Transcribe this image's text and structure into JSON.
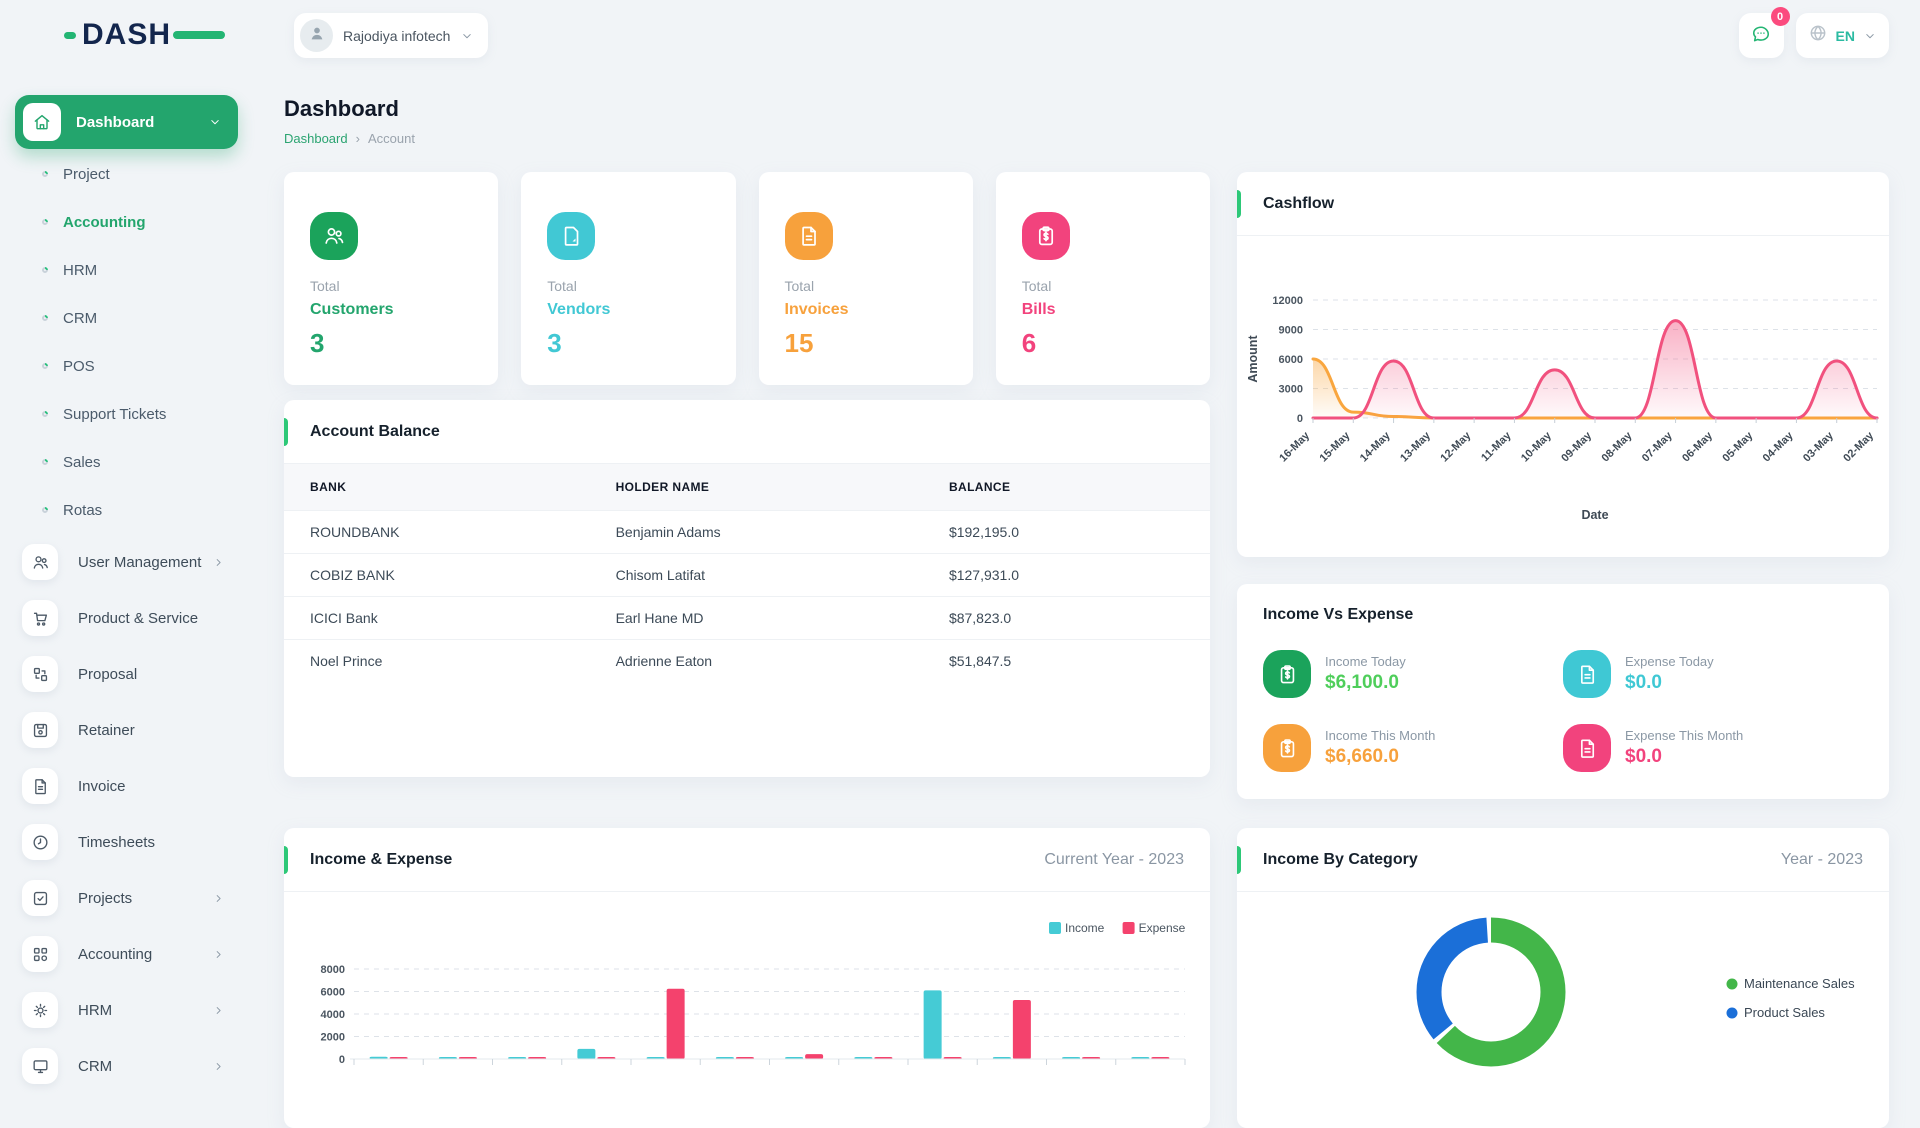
{
  "brand": {
    "name": "DASH"
  },
  "header": {
    "workspace": {
      "name": "Rajodiya infotech"
    },
    "messages_badge": "0",
    "language": "EN"
  },
  "page": {
    "title": "Dashboard",
    "breadcrumb": {
      "parent": "Dashboard",
      "separator": "›",
      "current": "Account"
    }
  },
  "sidebar": {
    "main_item": {
      "label": "Dashboard"
    },
    "sub_items": [
      {
        "label": "Project",
        "active": false
      },
      {
        "label": "Accounting",
        "active": true
      },
      {
        "label": "HRM",
        "active": false
      },
      {
        "label": "CRM",
        "active": false
      },
      {
        "label": "POS",
        "active": false
      },
      {
        "label": "Support Tickets",
        "active": false
      },
      {
        "label": "Sales",
        "active": false
      },
      {
        "label": "Rotas",
        "active": false
      }
    ],
    "menu_items": [
      {
        "label": "User Management",
        "icon": "users",
        "chevron": true
      },
      {
        "label": "Product & Service",
        "icon": "cart",
        "chevron": false
      },
      {
        "label": "Proposal",
        "icon": "proposal",
        "chevron": false
      },
      {
        "label": "Retainer",
        "icon": "floppy",
        "chevron": false
      },
      {
        "label": "Invoice",
        "icon": "file-text",
        "chevron": false
      },
      {
        "label": "Timesheets",
        "icon": "clock",
        "chevron": false
      },
      {
        "label": "Projects",
        "icon": "check-square",
        "chevron": true
      },
      {
        "label": "Accounting",
        "icon": "grid",
        "chevron": true
      },
      {
        "label": "HRM",
        "icon": "gear",
        "chevron": true
      },
      {
        "label": "CRM",
        "icon": "monitor",
        "chevron": true
      }
    ]
  },
  "stats": [
    {
      "prefix": "Total",
      "label": "Customers",
      "value": "3",
      "color": "#23a56d",
      "icon_bg": "#1ba35b",
      "icon": "users"
    },
    {
      "prefix": "Total",
      "label": "Vendors",
      "value": "3",
      "color": "#41c8d4",
      "icon_bg": "#41c8d4",
      "icon": "file-blank"
    },
    {
      "prefix": "Total",
      "label": "Invoices",
      "value": "15",
      "color": "#f7a13c",
      "icon_bg": "#f7a13c",
      "icon": "file-text"
    },
    {
      "prefix": "Total",
      "label": "Bills",
      "value": "6",
      "color": "#f2437d",
      "icon_bg": "#f2437d",
      "icon": "clipboard-dollar"
    }
  ],
  "account_balance": {
    "title": "Account Balance",
    "columns": [
      "BANK",
      "HOLDER NAME",
      "BALANCE"
    ],
    "rows": [
      {
        "bank": "ROUNDBANK",
        "holder": "Benjamin Adams",
        "balance": "$192,195.0"
      },
      {
        "bank": "COBIZ BANK",
        "holder": "Chisom Latifat",
        "balance": "$127,931.0"
      },
      {
        "bank": "ICICI Bank",
        "holder": "Earl Hane MD",
        "balance": "$87,823.0"
      },
      {
        "bank": "Noel Prince",
        "holder": "Adrienne Eaton",
        "balance": "$51,847.5"
      }
    ]
  },
  "income_vs_expense": {
    "title": "Income Vs Expense",
    "items": [
      {
        "label": "Income Today",
        "value": "$6,100.0",
        "color": "#4fce5b",
        "icon_bg": "#1ba35b",
        "icon": "clipboard-dollar"
      },
      {
        "label": "Expense Today",
        "value": "$0.0",
        "color": "#3fc8d4",
        "icon_bg": "#3fc8d4",
        "icon": "file-text"
      },
      {
        "label": "Income This Month",
        "value": "$6,660.0",
        "color": "#f7a13c",
        "icon_bg": "#f7a13c",
        "icon": "clipboard-dollar"
      },
      {
        "label": "Expense This Month",
        "value": "$0.0",
        "color": "#f2437d",
        "icon_bg": "#f2437d",
        "icon": "file-text"
      }
    ]
  },
  "panels": {
    "cashflow_title": "Cashflow",
    "income_expense_title": "Income & Expense",
    "income_expense_period": "Current Year - 2023",
    "category_title": "Income By Category",
    "category_period": "Year - 2023"
  },
  "chart_data": [
    {
      "type": "area",
      "title": "Cashflow",
      "xlabel": "Date",
      "ylabel": "Amount",
      "x": [
        "16-May",
        "15-May",
        "14-May",
        "13-May",
        "12-May",
        "11-May",
        "10-May",
        "09-May",
        "08-May",
        "07-May",
        "06-May",
        "05-May",
        "04-May",
        "03-May",
        "02-May"
      ],
      "ylim": [
        0,
        12000
      ],
      "yticks": [
        0,
        3000,
        6000,
        9000,
        12000
      ],
      "grid": true,
      "legend_position": "none",
      "series": [
        {
          "name": "series-orange",
          "color": "#f9a63e",
          "values": [
            6000,
            600,
            150,
            0,
            0,
            0,
            0,
            0,
            0,
            0,
            0,
            0,
            0,
            0,
            0
          ]
        },
        {
          "name": "series-pink",
          "color": "#f1517e",
          "values": [
            0,
            0,
            5800,
            0,
            0,
            0,
            4900,
            0,
            0,
            9900,
            0,
            0,
            0,
            5800,
            0
          ]
        }
      ]
    },
    {
      "type": "bar",
      "title": "Income & Expense",
      "subtitle": "Current Year - 2023",
      "categories": [
        "",
        "",
        "",
        "",
        "",
        "",
        "",
        "",
        "",
        "",
        "",
        ""
      ],
      "categories_note": "x-axis labels cut off at bottom edge of screen",
      "ylim": [
        0,
        8000
      ],
      "yticks": [
        0,
        2000,
        4000,
        6000,
        8000
      ],
      "grid": true,
      "legend_position": "top-right",
      "series": [
        {
          "name": "Income",
          "color": "#45cbd5",
          "values": [
            200,
            100,
            100,
            900,
            100,
            100,
            180,
            100,
            6100,
            100,
            100,
            100
          ]
        },
        {
          "name": "Expense",
          "color": "#f4426d",
          "values": [
            120,
            100,
            100,
            100,
            6250,
            100,
            430,
            100,
            100,
            5250,
            100,
            100
          ]
        }
      ]
    },
    {
      "type": "pie",
      "title": "Income By Category",
      "subtitle": "Year - 2023",
      "donut": true,
      "labels": [
        "Maintenance Sales",
        "Product Sales"
      ],
      "values_percent": [
        64,
        36
      ],
      "colors": [
        "#43b649",
        "#1b6fd8"
      ],
      "legend_position": "right"
    }
  ]
}
